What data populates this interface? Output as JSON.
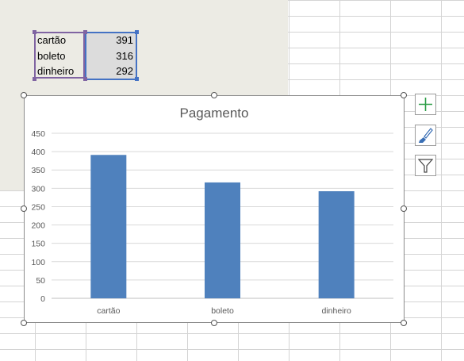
{
  "colors": {
    "bar": "#4f81bd",
    "sheet_background": "#ecebe4",
    "category_range": "#8064a2",
    "value_range": "#4472c4"
  },
  "data_table": {
    "rows": [
      {
        "label": "cartão",
        "value": "391"
      },
      {
        "label": "boleto",
        "value": "316"
      },
      {
        "label": "dinheiro",
        "value": "292"
      }
    ]
  },
  "chart_tools": [
    "add-chart-element-icon",
    "chart-styles-brush-icon",
    "chart-filter-funnel-icon"
  ],
  "chart_data": {
    "type": "bar",
    "title": "Pagamento",
    "xlabel": "",
    "ylabel": "",
    "categories": [
      "cartão",
      "boleto",
      "dinheiro"
    ],
    "values": [
      391,
      316,
      292
    ],
    "ylim": [
      0,
      450
    ],
    "yticks": [
      "0",
      "50",
      "100",
      "150",
      "200",
      "250",
      "300",
      "350",
      "400",
      "450"
    ],
    "grid": true,
    "legend": "none"
  }
}
